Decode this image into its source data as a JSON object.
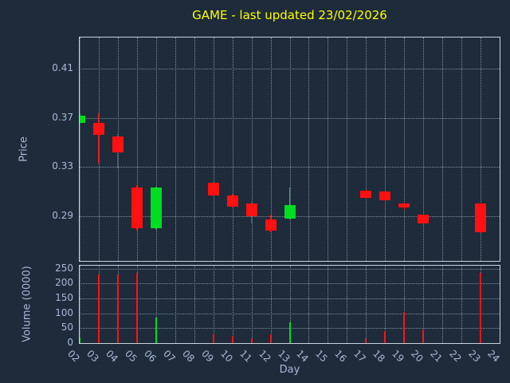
{
  "title": "GAME - last updated 23/02/2026",
  "colors": {
    "background": "#1d2b3a",
    "title": "#ffff00",
    "axis_label": "#aab8d8",
    "tick_label": "#aab8d8",
    "grid": "#7f8fa0",
    "border": "#c8d2dc",
    "up": "#00dd22",
    "down": "#ff1111"
  },
  "chart_data": {
    "type": "candlestick",
    "title": "GAME - last updated 23/02/2026",
    "xlabel": "Day",
    "price_ylabel": "Price",
    "volume_ylabel": "Volume (0000)",
    "legend": "none",
    "grid": true,
    "x_ticks": [
      "02",
      "03",
      "04",
      "05",
      "06",
      "07",
      "08",
      "09",
      "10",
      "11",
      "12",
      "13",
      "14",
      "15",
      "16",
      "17",
      "18",
      "19",
      "20",
      "21",
      "22",
      "23",
      "24"
    ],
    "price_ticks": [
      "0.29",
      "0.33",
      "0.37",
      "0.41"
    ],
    "volume_ticks": [
      "0",
      "50",
      "100",
      "150",
      "200",
      "250"
    ],
    "price_range": [
      0.2535,
      0.4355
    ],
    "volume_range": [
      0,
      260
    ],
    "candles": [
      {
        "day": "02",
        "open": 0.366,
        "high": 0.373,
        "low": 0.365,
        "close": 0.372,
        "dir": "up",
        "volume": 20
      },
      {
        "day": "03",
        "open": 0.366,
        "high": 0.374,
        "low": 0.333,
        "close": 0.356,
        "dir": "down",
        "volume": 230
      },
      {
        "day": "04",
        "open": 0.355,
        "high": 0.357,
        "low": 0.329,
        "close": 0.342,
        "dir": "down",
        "volume": 230
      },
      {
        "day": "05",
        "open": 0.313,
        "high": 0.315,
        "low": 0.278,
        "close": 0.28,
        "dir": "down",
        "volume": 235
      },
      {
        "day": "06",
        "open": 0.28,
        "high": 0.314,
        "low": 0.279,
        "close": 0.313,
        "dir": "up",
        "volume": 85
      },
      {
        "day": "09",
        "open": 0.317,
        "high": 0.318,
        "low": 0.306,
        "close": 0.307,
        "dir": "down",
        "volume": 30
      },
      {
        "day": "10",
        "open": 0.307,
        "high": 0.308,
        "low": 0.297,
        "close": 0.298,
        "dir": "down",
        "volume": 25
      },
      {
        "day": "11",
        "open": 0.3,
        "high": 0.301,
        "low": 0.284,
        "close": 0.29,
        "dir": "down",
        "volume": 15
      },
      {
        "day": "12",
        "open": 0.287,
        "high": 0.291,
        "low": 0.277,
        "close": 0.278,
        "dir": "down",
        "volume": 30
      },
      {
        "day": "13",
        "open": 0.288,
        "high": 0.313,
        "low": 0.287,
        "close": 0.299,
        "dir": "up",
        "volume": 70
      },
      {
        "day": "17",
        "open": 0.311,
        "high": 0.312,
        "low": 0.304,
        "close": 0.305,
        "dir": "down",
        "volume": 15
      },
      {
        "day": "18",
        "open": 0.31,
        "high": 0.311,
        "low": 0.296,
        "close": 0.303,
        "dir": "down",
        "volume": 40
      },
      {
        "day": "19",
        "open": 0.3,
        "high": 0.301,
        "low": 0.295,
        "close": 0.297,
        "dir": "down",
        "volume": 105
      },
      {
        "day": "20",
        "open": 0.291,
        "high": 0.292,
        "low": 0.283,
        "close": 0.284,
        "dir": "down",
        "volume": 45
      },
      {
        "day": "23",
        "open": 0.3,
        "high": 0.301,
        "low": 0.276,
        "close": 0.277,
        "dir": "down",
        "volume": 235
      }
    ]
  }
}
